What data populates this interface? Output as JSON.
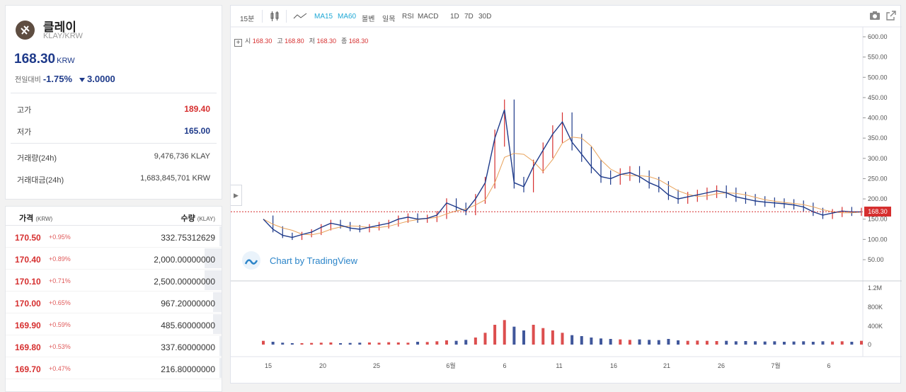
{
  "coin": {
    "name": "클레이",
    "pair": "KLAY/KRW",
    "price": "168.30",
    "price_unit": "KRW",
    "change_label": "전일대비",
    "change_pct": "-1.75%",
    "change_amt": "3.0000",
    "logo_icon": "klaytn-logo-icon",
    "stats": {
      "high_label": "고가",
      "high": "189.40",
      "low_label": "저가",
      "low": "165.00",
      "volume_label": "거래량(24h)",
      "volume": "9,476,736 KLAY",
      "value_label": "거래대금(24h)",
      "value": "1,683,845,701 KRW"
    }
  },
  "orderbook": {
    "price_header": "가격",
    "price_unit": "(KRW)",
    "qty_header": "수량",
    "qty_unit": "(KLAY)",
    "rows": [
      {
        "price": "170.50",
        "pct": "+0.95%",
        "qty": "332.75312629",
        "fill": 0.01
      },
      {
        "price": "170.40",
        "pct": "+0.89%",
        "qty": "2,000.00000000",
        "fill": 0.08
      },
      {
        "price": "170.10",
        "pct": "+0.71%",
        "qty": "2,500.00000000",
        "fill": 0.08
      },
      {
        "price": "170.00",
        "pct": "+0.65%",
        "qty": "967.20000000",
        "fill": 0.04
      },
      {
        "price": "169.90",
        "pct": "+0.59%",
        "qty": "485.60000000",
        "fill": 0.04
      },
      {
        "price": "169.80",
        "pct": "+0.53%",
        "qty": "337.60000000",
        "fill": 0.01
      },
      {
        "price": "169.70",
        "pct": "+0.47%",
        "qty": "216.80000000",
        "fill": 0.01
      }
    ]
  },
  "chart": {
    "toolbar": {
      "interval": "15분",
      "ma15": "MA15",
      "ma60": "MA60",
      "bollinger": "볼벤",
      "ichimoku": "일목",
      "rsi": "RSI",
      "macd": "MACD",
      "range_1d": "1D",
      "range_7d": "7D",
      "range_30d": "30D"
    },
    "ohlc": {
      "open_label": "시",
      "open": "168.30",
      "high_label": "고",
      "high": "168.80",
      "low_label": "저",
      "low": "168.30",
      "close_label": "종",
      "close": "168.30"
    },
    "watermark": "Chart by TradingView",
    "last_price_tag": "168.30",
    "colors": {
      "up": "#d62f2f",
      "down": "#1e3a8a",
      "ma": "#e8a25a"
    }
  },
  "chart_data": {
    "type": "line",
    "x_ticks": [
      "15",
      "20",
      "25",
      "6월",
      "6",
      "11",
      "16",
      "21",
      "26",
      "7월",
      "6"
    ],
    "price_axis": [
      "600.00",
      "550.00",
      "500.00",
      "450.00",
      "400.00",
      "350.00",
      "300.00",
      "250.00",
      "200.00",
      "150.00",
      "100.00",
      "50.00"
    ],
    "volume_axis": [
      "1.2M",
      "800K",
      "400K",
      "0"
    ],
    "ylim": [
      0,
      620
    ],
    "series": [
      {
        "values": [
          150,
          125,
          110,
          105,
          112,
          118,
          130,
          140,
          135,
          128,
          125,
          130,
          135,
          140,
          150,
          155,
          150,
          152,
          160,
          190,
          180,
          170,
          200,
          240,
          350,
          420,
          240,
          230,
          280,
          320,
          360,
          390,
          340,
          310,
          280,
          255,
          250,
          260,
          265,
          255,
          240,
          230,
          210,
          200,
          205,
          210,
          215,
          220,
          215,
          205,
          200,
          195,
          192,
          190,
          188,
          185,
          180,
          168,
          160,
          165,
          170,
          168,
          168
        ]
      }
    ],
    "volume": [
      80,
      60,
      40,
      30,
      30,
      35,
      40,
      45,
      30,
      35,
      40,
      45,
      40,
      50,
      45,
      40,
      60,
      55,
      70,
      90,
      80,
      100,
      150,
      250,
      420,
      520,
      380,
      300,
      420,
      350,
      300,
      250,
      200,
      180,
      150,
      130,
      120,
      110,
      100,
      110,
      100,
      95,
      120,
      90,
      80,
      85,
      80,
      75,
      80,
      70,
      75,
      70,
      65,
      70,
      60,
      65,
      70,
      60,
      70,
      65,
      70,
      60,
      80
    ]
  }
}
